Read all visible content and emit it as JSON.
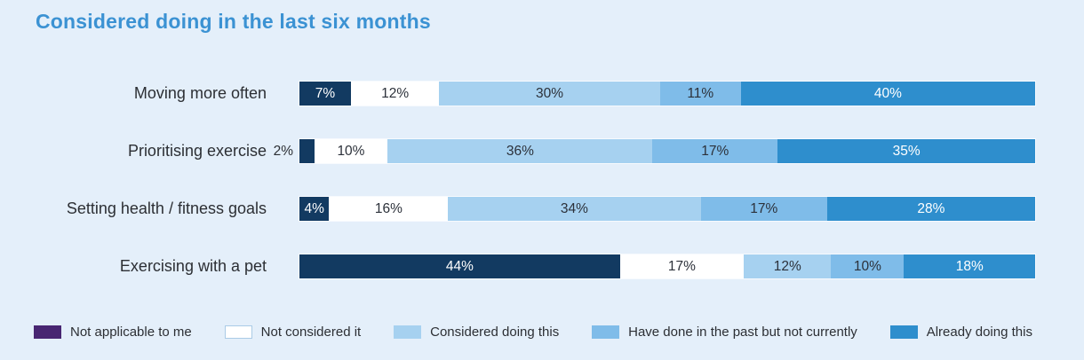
{
  "title": "Considered doing in the last six months",
  "colors": {
    "background": "#e4effa",
    "title": "#3b92d3",
    "label_text": "#2c2f34",
    "navy": "#123a61",
    "purple": "#482672",
    "white": "#ffffff",
    "white_swatch_border": "#aacbe6",
    "light_blue": "#a6d1f0",
    "medium_blue": "#7fbce9",
    "blue": "#2e8ecd",
    "text_on_dark": "#ffffff",
    "text_on_light": "#2c313a"
  },
  "legend": [
    {
      "label": "Not applicable to me",
      "color_key": "purple"
    },
    {
      "label": "Not considered it",
      "color_key": "white"
    },
    {
      "label": "Considered doing this",
      "color_key": "light_blue"
    },
    {
      "label": "Have done in the past but not currently",
      "color_key": "medium_blue"
    },
    {
      "label": "Already doing this",
      "color_key": "blue"
    }
  ],
  "rows": [
    {
      "label": "Moving more often",
      "outside_label": "",
      "segments": [
        {
          "value": 7,
          "text": "7%",
          "color_key": "navy",
          "label_inside": true
        },
        {
          "value": 12,
          "text": "12%",
          "color_key": "white",
          "label_inside": true
        },
        {
          "value": 30,
          "text": "30%",
          "color_key": "light_blue",
          "label_inside": true
        },
        {
          "value": 11,
          "text": "11%",
          "color_key": "medium_blue",
          "label_inside": true
        },
        {
          "value": 40,
          "text": "40%",
          "color_key": "blue",
          "label_inside": true
        }
      ]
    },
    {
      "label": "Prioritising exercise",
      "outside_label": "2%",
      "segments": [
        {
          "value": 2,
          "text": "2%",
          "color_key": "navy",
          "label_inside": false
        },
        {
          "value": 10,
          "text": "10%",
          "color_key": "white",
          "label_inside": true
        },
        {
          "value": 36,
          "text": "36%",
          "color_key": "light_blue",
          "label_inside": true
        },
        {
          "value": 17,
          "text": "17%",
          "color_key": "medium_blue",
          "label_inside": true
        },
        {
          "value": 35,
          "text": "35%",
          "color_key": "blue",
          "label_inside": true
        }
      ]
    },
    {
      "label": "Setting health / fitness goals",
      "outside_label": "",
      "segments": [
        {
          "value": 4,
          "text": "4%",
          "color_key": "navy",
          "label_inside": true
        },
        {
          "value": 16,
          "text": "16%",
          "color_key": "white",
          "label_inside": true
        },
        {
          "value": 34,
          "text": "34%",
          "color_key": "light_blue",
          "label_inside": true
        },
        {
          "value": 17,
          "text": "17%",
          "color_key": "medium_blue",
          "label_inside": true
        },
        {
          "value": 28,
          "text": "28%",
          "color_key": "blue",
          "label_inside": true
        }
      ]
    },
    {
      "label": "Exercising with a pet",
      "outside_label": "",
      "segments": [
        {
          "value": 44,
          "text": "44%",
          "color_key": "navy",
          "label_inside": true
        },
        {
          "value": 17,
          "text": "17%",
          "color_key": "white",
          "label_inside": true
        },
        {
          "value": 12,
          "text": "12%",
          "color_key": "light_blue",
          "label_inside": true
        },
        {
          "value": 10,
          "text": "10%",
          "color_key": "medium_blue",
          "label_inside": true
        },
        {
          "value": 18,
          "text": "18%",
          "color_key": "blue",
          "label_inside": true
        }
      ]
    }
  ],
  "chart_data": {
    "type": "bar",
    "orientation": "horizontal_stacked",
    "title": "Considered doing in the last six months",
    "categories": [
      "Moving more often",
      "Prioritising exercise",
      "Setting health / fitness goals",
      "Exercising with a pet"
    ],
    "series": [
      {
        "name": "Not applicable to me",
        "values": [
          7,
          2,
          4,
          44
        ]
      },
      {
        "name": "Not considered it",
        "values": [
          12,
          10,
          16,
          17
        ]
      },
      {
        "name": "Considered doing this",
        "values": [
          30,
          36,
          34,
          12
        ]
      },
      {
        "name": "Have done in the past but not currently",
        "values": [
          11,
          17,
          17,
          10
        ]
      },
      {
        "name": "Already doing this",
        "values": [
          40,
          35,
          28,
          18
        ]
      }
    ],
    "value_unit": "%",
    "xlim": [
      0,
      100
    ],
    "grid": false,
    "legend_position": "bottom",
    "data_labels": "inside_segments"
  }
}
